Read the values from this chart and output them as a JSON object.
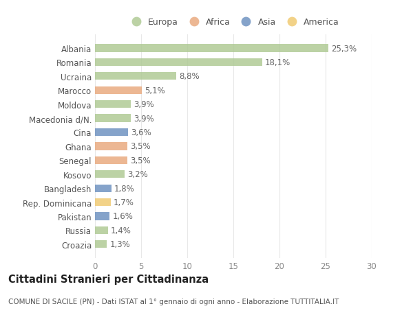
{
  "categories": [
    "Albania",
    "Romania",
    "Ucraina",
    "Marocco",
    "Moldova",
    "Macedonia d/N.",
    "Cina",
    "Ghana",
    "Senegal",
    "Kosovo",
    "Bangladesh",
    "Rep. Dominicana",
    "Pakistan",
    "Russia",
    "Croazia"
  ],
  "values": [
    25.3,
    18.1,
    8.8,
    5.1,
    3.9,
    3.9,
    3.6,
    3.5,
    3.5,
    3.2,
    1.8,
    1.7,
    1.6,
    1.4,
    1.3
  ],
  "labels": [
    "25,3%",
    "18,1%",
    "8,8%",
    "5,1%",
    "3,9%",
    "3,9%",
    "3,6%",
    "3,5%",
    "3,5%",
    "3,2%",
    "1,8%",
    "1,7%",
    "1,6%",
    "1,4%",
    "1,3%"
  ],
  "continents": [
    "Europa",
    "Europa",
    "Europa",
    "Africa",
    "Europa",
    "Europa",
    "Asia",
    "Africa",
    "Africa",
    "Europa",
    "Asia",
    "America",
    "Asia",
    "Europa",
    "Europa"
  ],
  "colors": {
    "Europa": "#adc992",
    "Africa": "#e8a87c",
    "Asia": "#6a8fbf",
    "America": "#f0c96e"
  },
  "legend_order": [
    "Europa",
    "Africa",
    "Asia",
    "America"
  ],
  "title": "Cittadini Stranieri per Cittadinanza",
  "subtitle": "COMUNE DI SACILE (PN) - Dati ISTAT al 1° gennaio di ogni anno - Elaborazione TUTTITALIA.IT",
  "xlim": [
    0,
    30
  ],
  "xticks": [
    0,
    5,
    10,
    15,
    20,
    25,
    30
  ],
  "background_color": "#ffffff",
  "grid_color": "#e8e8e8",
  "bar_height": 0.55,
  "label_fontsize": 8.5,
  "tick_fontsize": 8.5,
  "title_fontsize": 10.5,
  "subtitle_fontsize": 7.5
}
